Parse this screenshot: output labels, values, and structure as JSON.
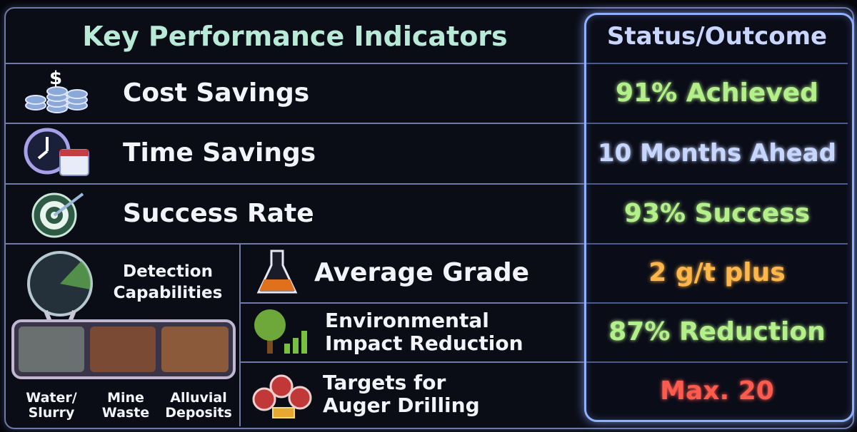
{
  "header": {
    "kpi": "Key Performance Indicators",
    "status": "Status/Outcome"
  },
  "rows": [
    {
      "label": "Cost Savings",
      "status": "91% Achieved",
      "color": "#b4f08a"
    },
    {
      "label": "Time Savings",
      "status": "10 Months Ahead",
      "color": "#c6d6ff"
    },
    {
      "label": "Success Rate",
      "status": "93% Success",
      "color": "#b4f08a"
    },
    {
      "label": "Average Grade",
      "status": "2 g/t plus",
      "color": "#ffb64a"
    },
    {
      "label": "Environmental Impact Reduction",
      "status": "87% Reduction",
      "color": "#b4f08a"
    },
    {
      "label": "Targets for Auger Drilling",
      "status": "Max. 20",
      "color": "#ff5a4e"
    }
  ],
  "detection": {
    "title": "Detection Capabilities",
    "sources": [
      "Water/ Slurry",
      "Mine Waste",
      "Alluvial Deposits"
    ]
  }
}
